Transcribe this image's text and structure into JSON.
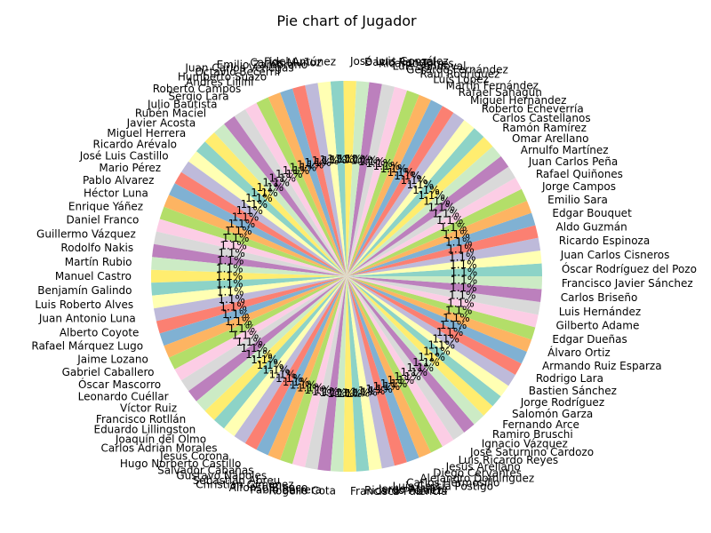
{
  "chart_data": {
    "type": "pie",
    "title": "Pie chart of Jugador",
    "labels": [
      "Óscar Rodríguez del Pozo",
      "Juan Carlos Cisneros",
      "Ricardo Espinoza",
      "Aldo Guzmán",
      "Edgar Bouquet",
      "Emilio Sara",
      "Jorge Campos",
      "Rafael Quiñones",
      "Juan Carlos Peña",
      "Arnulfo Martínez",
      "Omar Arellano",
      "Ramón Ramírez",
      "Carlos Castellanos",
      "Roberto Echeverría",
      "Miguel Hernández",
      "Rafael Sahagún",
      "Martín Fernández",
      "Luis Lopez",
      "Raúl Rodríguez",
      "Gerardo Fernández",
      "Luis Sandoval",
      "Ricardo Torres",
      "David Rangel",
      "José Luis González",
      "Fidel Antúnez",
      "Carlos Muñoz",
      "Emilio Zambrano",
      "Juan Carlos Venegas",
      "Octavio Becerril",
      "Humberto Suazo",
      "Andrés Lillini",
      "Roberto Campos",
      "Sergio Lara",
      "Julio Bautista",
      "Rubén Maciel",
      "Javier Acosta",
      "Miguel Herrera",
      "Ricardo Arévalo",
      "José Luis Castillo",
      "Mario Pérez",
      "Pablo Alvarez",
      "Héctor Luna",
      "Enrique Yáñez",
      "Daniel Franco",
      "Guillermo Vázquez",
      "Rodolfo Nakis",
      "Martín Rubio",
      "Manuel Castro",
      "Benjamín Galindo",
      "Luis Roberto Alves",
      "Juan Antonio Luna",
      "Alberto Coyote",
      "Rafael Márquez Lugo",
      "Jaime Lozano",
      "Gabriel Caballero",
      "Óscar Mascorro",
      "Leonardo Cuéllar",
      "Víctor Ruiz",
      "Francisco Rotllán",
      "Eduardo Lillingston",
      "Joaquín del Olmo",
      "Carlos Adrián Morales",
      "Jesús Corona",
      "Hugo Norberto Castillo",
      "Salvador Cabañas",
      "Gustavo Nápoles",
      "Sebastián Abreu",
      "Christian Giménez",
      "Alfonso Blanco",
      "Pablo Barrera",
      "Rogelio Cota",
      "Francisco Palencia",
      "Ricardo Peláez",
      "Jorge Aguirre",
      "Luis García Postigo",
      "Carlos Hermosillo",
      "Alejandro Domínguez",
      "Diego Cervantes",
      "Jesús Arellano",
      "Luis Ricardo Reyes",
      "José Saturnino Cardozo",
      "Ignacio Vázquez",
      "Ramiro Bruschi",
      "Fernando Arce",
      "Salomón Garza",
      "Jorge Rodríguez",
      "Bastien Sánchez",
      "Rodrigo Lara",
      "Armando Ruiz Esparza",
      "Álvaro Ortiz",
      "Edgar Dueñas",
      "Gilberto Adame",
      "Luis Hernández",
      "Carlos Briseño",
      "Francisco Javier Sánchez"
    ],
    "values": [
      1,
      1,
      1,
      1,
      1,
      1,
      1,
      1,
      1,
      1,
      1,
      1,
      1,
      1,
      1,
      1,
      1,
      1,
      1,
      1,
      1,
      1,
      1,
      1,
      1,
      1,
      1,
      1,
      1,
      1,
      1,
      1,
      1,
      1,
      1,
      1,
      1,
      1,
      1,
      1,
      1,
      1,
      1,
      1,
      1,
      1,
      1,
      1,
      1,
      1,
      1,
      1,
      1,
      1,
      1,
      1,
      1,
      1,
      1,
      1,
      1,
      1,
      1,
      1,
      1,
      1,
      1,
      1,
      1,
      1,
      1,
      1,
      1,
      1,
      1,
      1,
      1,
      1,
      1,
      1,
      1,
      1,
      1,
      1,
      1,
      1,
      1,
      1,
      1,
      1,
      1,
      1,
      1,
      1,
      1
    ],
    "colors": [
      "#8dd3c7",
      "#ffffb3",
      "#bebada",
      "#fb8072",
      "#80b1d3",
      "#fdb462",
      "#b3de69",
      "#fccde5",
      "#d9d9d9",
      "#bc80bd",
      "#ccebc5",
      "#ffed6f"
    ],
    "legend": "none"
  }
}
